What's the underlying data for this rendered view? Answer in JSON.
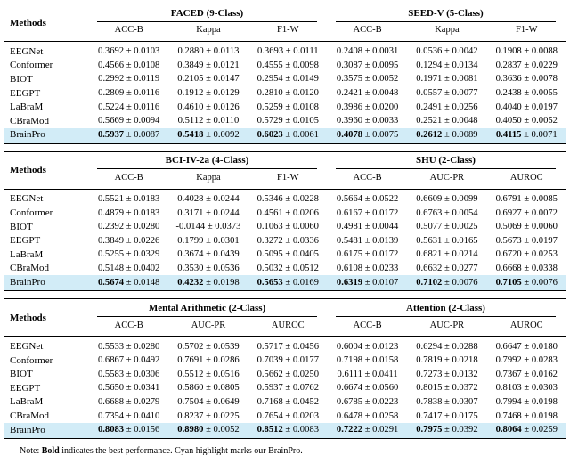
{
  "pm": "±",
  "methods_label": "Methods",
  "colors": {
    "highlight": "#d2ecf7",
    "rule": "#000000",
    "text": "#000000"
  },
  "note": {
    "prefix": "Note: ",
    "bold_word": "Bold",
    "suffix": " indicates the best performance. Cyan highlight marks our BrainPro."
  },
  "tables": [
    {
      "groups": [
        {
          "title": "FACED (9-Class)",
          "columns": [
            "ACC-B",
            "Kappa",
            "F1-W"
          ]
        },
        {
          "title": "SEED-V (5-Class)",
          "columns": [
            "ACC-B",
            "Kappa",
            "F1-W"
          ]
        }
      ],
      "rows": [
        {
          "method": "EEGNet",
          "highlight": false,
          "cells": [
            [
              "0.3692",
              "0.0103"
            ],
            [
              "0.2880",
              "0.0113"
            ],
            [
              "0.3693",
              "0.0111"
            ],
            [
              "0.2408",
              "0.0031"
            ],
            [
              "0.0536",
              "0.0042"
            ],
            [
              "0.1908",
              "0.0088"
            ]
          ]
        },
        {
          "method": "Conformer",
          "highlight": false,
          "cells": [
            [
              "0.4566",
              "0.0108"
            ],
            [
              "0.3849",
              "0.0121"
            ],
            [
              "0.4555",
              "0.0098"
            ],
            [
              "0.3087",
              "0.0095"
            ],
            [
              "0.1294",
              "0.0134"
            ],
            [
              "0.2837",
              "0.0229"
            ]
          ]
        },
        {
          "method": "BIOT",
          "highlight": false,
          "cells": [
            [
              "0.2992",
              "0.0119"
            ],
            [
              "0.2105",
              "0.0147"
            ],
            [
              "0.2954",
              "0.0149"
            ],
            [
              "0.3575",
              "0.0052"
            ],
            [
              "0.1971",
              "0.0081"
            ],
            [
              "0.3636",
              "0.0078"
            ]
          ]
        },
        {
          "method": "EEGPT",
          "highlight": false,
          "cells": [
            [
              "0.2809",
              "0.0116"
            ],
            [
              "0.1912",
              "0.0129"
            ],
            [
              "0.2810",
              "0.0120"
            ],
            [
              "0.2421",
              "0.0048"
            ],
            [
              "0.0557",
              "0.0077"
            ],
            [
              "0.2438",
              "0.0055"
            ]
          ]
        },
        {
          "method": "LaBraM",
          "highlight": false,
          "cells": [
            [
              "0.5224",
              "0.0116"
            ],
            [
              "0.4610",
              "0.0126"
            ],
            [
              "0.5259",
              "0.0108"
            ],
            [
              "0.3986",
              "0.0200"
            ],
            [
              "0.2491",
              "0.0256"
            ],
            [
              "0.4040",
              "0.0197"
            ]
          ]
        },
        {
          "method": "CBraMod",
          "highlight": false,
          "cells": [
            [
              "0.5669",
              "0.0094"
            ],
            [
              "0.5112",
              "0.0110"
            ],
            [
              "0.5729",
              "0.0105"
            ],
            [
              "0.3960",
              "0.0033"
            ],
            [
              "0.2521",
              "0.0048"
            ],
            [
              "0.4050",
              "0.0052"
            ]
          ]
        },
        {
          "method": "BrainPro",
          "highlight": true,
          "cells": [
            [
              "0.5937",
              "0.0087"
            ],
            [
              "0.5418",
              "0.0092"
            ],
            [
              "0.6023",
              "0.0061"
            ],
            [
              "0.4078",
              "0.0075"
            ],
            [
              "0.2612",
              "0.0089"
            ],
            [
              "0.4115",
              "0.0071"
            ]
          ]
        }
      ]
    },
    {
      "groups": [
        {
          "title": "BCI-IV-2a (4-Class)",
          "columns": [
            "ACC-B",
            "Kappa",
            "F1-W"
          ]
        },
        {
          "title": "SHU (2-Class)",
          "columns": [
            "ACC-B",
            "AUC-PR",
            "AUROC"
          ]
        }
      ],
      "rows": [
        {
          "method": "EEGNet",
          "highlight": false,
          "cells": [
            [
              "0.5521",
              "0.0183"
            ],
            [
              "0.4028",
              "0.0244"
            ],
            [
              "0.5346",
              "0.0228"
            ],
            [
              "0.5664",
              "0.0522"
            ],
            [
              "0.6609",
              "0.0099"
            ],
            [
              "0.6791",
              "0.0085"
            ]
          ]
        },
        {
          "method": "Conformer",
          "highlight": false,
          "cells": [
            [
              "0.4879",
              "0.0183"
            ],
            [
              "0.3171",
              "0.0244"
            ],
            [
              "0.4561",
              "0.0206"
            ],
            [
              "0.6167",
              "0.0172"
            ],
            [
              "0.6763",
              "0.0054"
            ],
            [
              "0.6927",
              "0.0072"
            ]
          ]
        },
        {
          "method": "BIOT",
          "highlight": false,
          "cells": [
            [
              "0.2392",
              "0.0280"
            ],
            [
              "-0.0144",
              "0.0373"
            ],
            [
              "0.1063",
              "0.0060"
            ],
            [
              "0.4981",
              "0.0044"
            ],
            [
              "0.5077",
              "0.0025"
            ],
            [
              "0.5069",
              "0.0060"
            ]
          ]
        },
        {
          "method": "EEGPT",
          "highlight": false,
          "cells": [
            [
              "0.3849",
              "0.0226"
            ],
            [
              "0.1799",
              "0.0301"
            ],
            [
              "0.3272",
              "0.0336"
            ],
            [
              "0.5481",
              "0.0139"
            ],
            [
              "0.5631",
              "0.0165"
            ],
            [
              "0.5673",
              "0.0197"
            ]
          ]
        },
        {
          "method": "LaBraM",
          "highlight": false,
          "cells": [
            [
              "0.5255",
              "0.0329"
            ],
            [
              "0.3674",
              "0.0439"
            ],
            [
              "0.5095",
              "0.0405"
            ],
            [
              "0.6175",
              "0.0172"
            ],
            [
              "0.6821",
              "0.0214"
            ],
            [
              "0.6720",
              "0.0253"
            ]
          ]
        },
        {
          "method": "CBraMod",
          "highlight": false,
          "cells": [
            [
              "0.5148",
              "0.0402"
            ],
            [
              "0.3530",
              "0.0536"
            ],
            [
              "0.5032",
              "0.0512"
            ],
            [
              "0.6108",
              "0.0233"
            ],
            [
              "0.6632",
              "0.0277"
            ],
            [
              "0.6668",
              "0.0338"
            ]
          ]
        },
        {
          "method": "BrainPro",
          "highlight": true,
          "cells": [
            [
              "0.5674",
              "0.0148"
            ],
            [
              "0.4232",
              "0.0198"
            ],
            [
              "0.5653",
              "0.0169"
            ],
            [
              "0.6319",
              "0.0107"
            ],
            [
              "0.7102",
              "0.0076"
            ],
            [
              "0.7105",
              "0.0076"
            ]
          ]
        }
      ]
    },
    {
      "groups": [
        {
          "title": "Mental Arithmetic (2-Class)",
          "columns": [
            "ACC-B",
            "AUC-PR",
            "AUROC"
          ]
        },
        {
          "title": "Attention (2-Class)",
          "columns": [
            "ACC-B",
            "AUC-PR",
            "AUROC"
          ]
        }
      ],
      "rows": [
        {
          "method": "EEGNet",
          "highlight": false,
          "cells": [
            [
              "0.5533",
              "0.0280"
            ],
            [
              "0.5702",
              "0.0539"
            ],
            [
              "0.5717",
              "0.0456"
            ],
            [
              "0.6004",
              "0.0123"
            ],
            [
              "0.6294",
              "0.0288"
            ],
            [
              "0.6647",
              "0.0180"
            ]
          ]
        },
        {
          "method": "Conformer",
          "highlight": false,
          "cells": [
            [
              "0.6867",
              "0.0492"
            ],
            [
              "0.7691",
              "0.0286"
            ],
            [
              "0.7039",
              "0.0177"
            ],
            [
              "0.7198",
              "0.0158"
            ],
            [
              "0.7819",
              "0.0218"
            ],
            [
              "0.7992",
              "0.0283"
            ]
          ]
        },
        {
          "method": "BIOT",
          "highlight": false,
          "cells": [
            [
              "0.5583",
              "0.0306"
            ],
            [
              "0.5512",
              "0.0516"
            ],
            [
              "0.5662",
              "0.0250"
            ],
            [
              "0.6111",
              "0.0411"
            ],
            [
              "0.7273",
              "0.0132"
            ],
            [
              "0.7367",
              "0.0162"
            ]
          ]
        },
        {
          "method": "EEGPT",
          "highlight": false,
          "cells": [
            [
              "0.5650",
              "0.0341"
            ],
            [
              "0.5860",
              "0.0805"
            ],
            [
              "0.5937",
              "0.0762"
            ],
            [
              "0.6674",
              "0.0560"
            ],
            [
              "0.8015",
              "0.0372"
            ],
            [
              "0.8103",
              "0.0303"
            ]
          ]
        },
        {
          "method": "LaBraM",
          "highlight": false,
          "cells": [
            [
              "0.6688",
              "0.0279"
            ],
            [
              "0.7504",
              "0.0649"
            ],
            [
              "0.7168",
              "0.0452"
            ],
            [
              "0.6785",
              "0.0223"
            ],
            [
              "0.7838",
              "0.0307"
            ],
            [
              "0.7994",
              "0.0198"
            ]
          ]
        },
        {
          "method": "CBraMod",
          "highlight": false,
          "cells": [
            [
              "0.7354",
              "0.0410"
            ],
            [
              "0.8237",
              "0.0225"
            ],
            [
              "0.7654",
              "0.0203"
            ],
            [
              "0.6478",
              "0.0258"
            ],
            [
              "0.7417",
              "0.0175"
            ],
            [
              "0.7468",
              "0.0198"
            ]
          ]
        },
        {
          "method": "BrainPro",
          "highlight": true,
          "cells": [
            [
              "0.8083",
              "0.0156"
            ],
            [
              "0.8980",
              "0.0052"
            ],
            [
              "0.8512",
              "0.0083"
            ],
            [
              "0.7222",
              "0.0291"
            ],
            [
              "0.7975",
              "0.0392"
            ],
            [
              "0.8064",
              "0.0259"
            ]
          ]
        }
      ]
    }
  ]
}
